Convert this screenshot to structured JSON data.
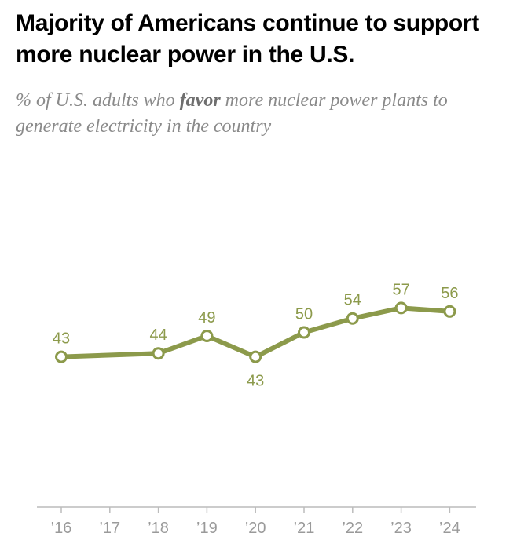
{
  "title": "Majority of Americans continue to support more nuclear power in the U.S.",
  "subtitle": {
    "before": "% of U.S. adults who ",
    "emphasis": "favor",
    "after": " more nuclear power plants to generate electricity in the country"
  },
  "colors": {
    "series": "#8c9a4b",
    "label": "#8c9a4b",
    "axis": "#bcbcbc",
    "tick_label": "#9a9a9a",
    "marker_fill": "#ffffff"
  },
  "chart_data": {
    "type": "line",
    "categories": [
      "’16",
      "’17",
      "’18",
      "’19",
      "’20",
      "’21",
      "’22",
      "’23",
      "’24"
    ],
    "series": [
      {
        "points": [
          {
            "x": "’16",
            "y": 43,
            "label": "43",
            "label_pos": "above"
          },
          {
            "x": "’18",
            "y": 44,
            "label": "44",
            "label_pos": "above"
          },
          {
            "x": "’19",
            "y": 49,
            "label": "49",
            "label_pos": "above"
          },
          {
            "x": "’20",
            "y": 43,
            "label": "43",
            "label_pos": "below"
          },
          {
            "x": "’21",
            "y": 50,
            "label": "50",
            "label_pos": "above"
          },
          {
            "x": "’22",
            "y": 54,
            "label": "54",
            "label_pos": "above"
          },
          {
            "x": "’23",
            "y": 57,
            "label": "57",
            "label_pos": "above"
          },
          {
            "x": "’24",
            "y": 56,
            "label": "56",
            "label_pos": "above"
          }
        ]
      }
    ],
    "ylim": [
      0,
      100
    ],
    "grid": false,
    "legend": "none"
  }
}
